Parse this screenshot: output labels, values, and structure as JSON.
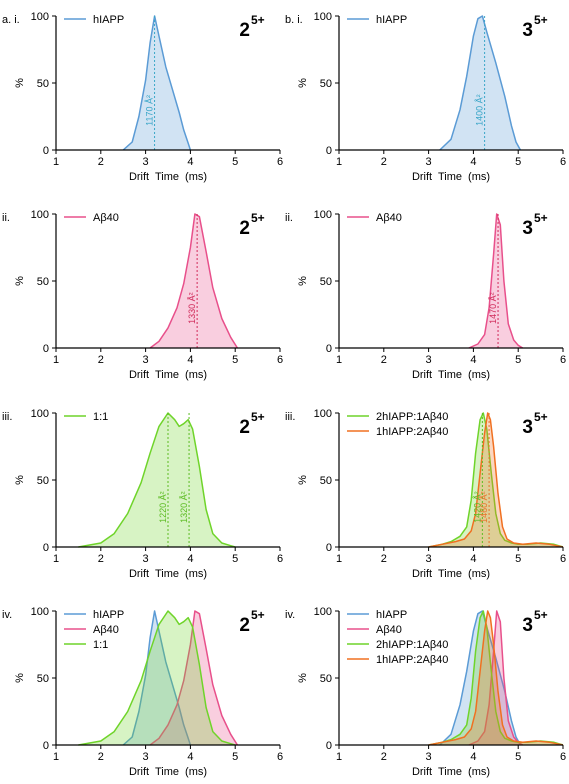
{
  "colors": {
    "hIAPP": "#5b9bd5",
    "Ab40": "#e8508b",
    "one_to_one": "#6fd42a",
    "2hIAPP:1Ab40": "#6fd42a",
    "1hIAPP:2Ab40": "#f07021",
    "ccs_blue": "#3aa6c8",
    "ccs_red": "#d02a5a",
    "ccs_green": "#5cbb22",
    "ccs_orange": "#e8742a"
  },
  "chart_data": [
    {
      "id": "ai",
      "type": "area",
      "panel_label": "a. i.",
      "charge": {
        "base": "2",
        "sup": "5+"
      },
      "xlabel": "Drift Time (ms)",
      "ylabel": "%",
      "xlim": [
        1,
        6
      ],
      "ylim": [
        0,
        100
      ],
      "xticks": [
        "1",
        "2",
        "3",
        "4",
        "5",
        "6"
      ],
      "yticks": [
        "0",
        "50",
        "100"
      ],
      "legend_placement": "top-left",
      "series": [
        {
          "name": "hIAPP",
          "key": "hIAPP",
          "x": [
            2.5,
            2.7,
            2.85,
            3.0,
            3.1,
            3.2,
            3.3,
            3.45,
            3.6,
            3.75,
            3.85,
            3.95,
            4.0
          ],
          "y": [
            0,
            6,
            25,
            52,
            80,
            100,
            85,
            62,
            45,
            28,
            15,
            5,
            0
          ]
        }
      ],
      "annotations": [
        {
          "text": "1170 Å²",
          "x": 3.2,
          "color": "ccs_blue"
        }
      ]
    },
    {
      "id": "bi",
      "type": "area",
      "panel_label": "b. i.",
      "charge": {
        "base": "3",
        "sup": "5+"
      },
      "xlabel": "Drift Time (ms)",
      "ylabel": "%",
      "xlim": [
        1,
        6
      ],
      "ylim": [
        0,
        100
      ],
      "xticks": [
        "1",
        "2",
        "3",
        "4",
        "5",
        "6"
      ],
      "yticks": [
        "0",
        "50",
        "100"
      ],
      "legend_placement": "top-left",
      "series": [
        {
          "name": "hIAPP",
          "key": "hIAPP",
          "x": [
            3.25,
            3.5,
            3.7,
            3.85,
            4.0,
            4.1,
            4.2,
            4.3,
            4.5,
            4.7,
            4.85,
            4.95,
            5.05
          ],
          "y": [
            0,
            8,
            30,
            55,
            85,
            98,
            100,
            88,
            65,
            40,
            18,
            6,
            0
          ]
        }
      ],
      "annotations": [
        {
          "text": "1400 Å²",
          "x": 4.25,
          "color": "ccs_blue"
        }
      ]
    },
    {
      "id": "aii",
      "type": "area",
      "panel_label": "ii.",
      "charge": {
        "base": "2",
        "sup": "5+"
      },
      "xlabel": "Drift Time (ms)",
      "ylabel": "%",
      "xlim": [
        1,
        6
      ],
      "ylim": [
        0,
        100
      ],
      "xticks": [
        "1",
        "2",
        "3",
        "4",
        "5",
        "6"
      ],
      "yticks": [
        "0",
        "50",
        "100"
      ],
      "legend_placement": "top-left",
      "series": [
        {
          "name": "Aβ40",
          "key": "Ab40",
          "x": [
            3.1,
            3.3,
            3.5,
            3.7,
            3.85,
            4.0,
            4.1,
            4.2,
            4.35,
            4.5,
            4.7,
            4.9,
            5.05
          ],
          "y": [
            0,
            5,
            15,
            30,
            48,
            75,
            100,
            98,
            72,
            45,
            22,
            8,
            0
          ]
        }
      ],
      "annotations": [
        {
          "text": "1330 Å²",
          "x": 4.15,
          "color": "ccs_red"
        }
      ]
    },
    {
      "id": "bii",
      "type": "area",
      "panel_label": "ii.",
      "charge": {
        "base": "3",
        "sup": "5+"
      },
      "xlabel": "Drift Time (ms)",
      "ylabel": "%",
      "xlim": [
        1,
        6
      ],
      "ylim": [
        0,
        100
      ],
      "xticks": [
        "1",
        "2",
        "3",
        "4",
        "5",
        "6"
      ],
      "yticks": [
        "0",
        "50",
        "100"
      ],
      "legend_placement": "top-left",
      "series": [
        {
          "name": "Aβ40",
          "key": "Ab40",
          "x": [
            3.9,
            4.1,
            4.25,
            4.35,
            4.45,
            4.52,
            4.6,
            4.68,
            4.78,
            4.9,
            5.0,
            5.1
          ],
          "y": [
            0,
            3,
            10,
            30,
            70,
            100,
            92,
            50,
            18,
            6,
            2,
            0
          ]
        }
      ],
      "annotations": [
        {
          "text": "1470 Å²",
          "x": 4.55,
          "color": "ccs_red"
        }
      ]
    },
    {
      "id": "aiii",
      "type": "area",
      "panel_label": "iii.",
      "charge": {
        "base": "2",
        "sup": "5+"
      },
      "xlabel": "Drift Time (ms)",
      "ylabel": "%",
      "xlim": [
        1,
        6
      ],
      "ylim": [
        0,
        100
      ],
      "xticks": [
        "1",
        "2",
        "3",
        "4",
        "5",
        "6"
      ],
      "yticks": [
        "0",
        "50",
        "100"
      ],
      "legend_placement": "top-left",
      "series": [
        {
          "name": "1:1",
          "key": "one_to_one",
          "x": [
            1.5,
            2.0,
            2.3,
            2.6,
            2.9,
            3.1,
            3.3,
            3.5,
            3.65,
            3.75,
            3.85,
            3.95,
            4.05,
            4.2,
            4.35,
            4.5,
            4.7,
            4.9,
            5.0
          ],
          "y": [
            0,
            3,
            10,
            25,
            48,
            70,
            90,
            100,
            95,
            90,
            92,
            95,
            88,
            60,
            28,
            10,
            3,
            1,
            0
          ]
        }
      ],
      "annotations": [
        {
          "text": "1220 Å²",
          "x": 3.5,
          "color": "ccs_green"
        },
        {
          "text": "1320 Å²",
          "x": 3.97,
          "color": "ccs_green"
        }
      ]
    },
    {
      "id": "biii",
      "type": "area",
      "panel_label": "iii.",
      "charge": {
        "base": "3",
        "sup": "5+"
      },
      "xlabel": "Drift Time (ms)",
      "ylabel": "%",
      "xlim": [
        1,
        6
      ],
      "ylim": [
        0,
        100
      ],
      "xticks": [
        "1",
        "2",
        "3",
        "4",
        "5",
        "6"
      ],
      "yticks": [
        "0",
        "50",
        "100"
      ],
      "legend_placement": "top-left",
      "series": [
        {
          "name": "2hIAPP:1Aβ40",
          "key": "2hIAPP:1Ab40",
          "x": [
            3.0,
            3.3,
            3.5,
            3.7,
            3.85,
            3.95,
            4.05,
            4.15,
            4.22,
            4.3,
            4.4,
            4.5,
            4.6,
            4.7,
            4.85,
            5.0,
            5.2,
            5.5,
            5.8,
            6.0
          ],
          "y": [
            0,
            2,
            4,
            8,
            15,
            35,
            70,
            95,
            100,
            88,
            55,
            25,
            10,
            5,
            3,
            2,
            2,
            3,
            2,
            0
          ]
        },
        {
          "name": "1hIAPP:2Aβ40",
          "key": "1hIAPP:2Ab40",
          "x": [
            3.0,
            3.3,
            3.6,
            3.8,
            3.95,
            4.05,
            4.15,
            4.25,
            4.32,
            4.38,
            4.45,
            4.55,
            4.65,
            4.75,
            4.9,
            5.1,
            5.4,
            5.7,
            6.0
          ],
          "y": [
            0,
            2,
            4,
            6,
            12,
            25,
            55,
            85,
            100,
            95,
            75,
            40,
            15,
            6,
            3,
            2,
            3,
            2,
            0
          ]
        }
      ],
      "annotations": [
        {
          "text": "1420 Å²",
          "x": 4.2,
          "color": "ccs_green"
        },
        {
          "text": "1460 Å²",
          "x": 4.35,
          "color": "ccs_orange"
        }
      ]
    },
    {
      "id": "aiv",
      "type": "area",
      "panel_label": "iv.",
      "charge": {
        "base": "2",
        "sup": "5+"
      },
      "xlabel": "Drift Time (ms)",
      "ylabel": "%",
      "xlim": [
        1,
        6
      ],
      "ylim": [
        0,
        100
      ],
      "xticks": [
        "1",
        "2",
        "3",
        "4",
        "5",
        "6"
      ],
      "yticks": [
        "0",
        "50",
        "100"
      ],
      "legend_placement": "top-left",
      "series": [
        {
          "name": "hIAPP",
          "key": "hIAPP",
          "x": [
            2.5,
            2.7,
            2.85,
            3.0,
            3.1,
            3.2,
            3.3,
            3.45,
            3.6,
            3.75,
            3.85,
            3.95,
            4.0
          ],
          "y": [
            0,
            6,
            25,
            52,
            80,
            100,
            85,
            62,
            45,
            28,
            15,
            5,
            0
          ]
        },
        {
          "name": "Aβ40",
          "key": "Ab40",
          "x": [
            3.1,
            3.3,
            3.5,
            3.7,
            3.85,
            4.0,
            4.1,
            4.2,
            4.35,
            4.5,
            4.7,
            4.9,
            5.05
          ],
          "y": [
            0,
            5,
            15,
            30,
            48,
            75,
            100,
            98,
            72,
            45,
            22,
            8,
            0
          ]
        },
        {
          "name": "1:1",
          "key": "one_to_one",
          "x": [
            1.5,
            2.0,
            2.3,
            2.6,
            2.9,
            3.1,
            3.3,
            3.5,
            3.65,
            3.75,
            3.85,
            3.95,
            4.05,
            4.2,
            4.35,
            4.5,
            4.7,
            4.9,
            5.0
          ],
          "y": [
            0,
            3,
            10,
            25,
            48,
            70,
            90,
            100,
            95,
            90,
            92,
            95,
            88,
            60,
            28,
            10,
            3,
            1,
            0
          ]
        }
      ],
      "annotations": []
    },
    {
      "id": "biv",
      "type": "area",
      "panel_label": "iv.",
      "charge": {
        "base": "3",
        "sup": "5+"
      },
      "xlabel": "Drift Time (ms)",
      "ylabel": "%",
      "xlim": [
        1,
        6
      ],
      "ylim": [
        0,
        100
      ],
      "xticks": [
        "1",
        "2",
        "3",
        "4",
        "5",
        "6"
      ],
      "yticks": [
        "0",
        "50",
        "100"
      ],
      "legend_placement": "top-left",
      "series": [
        {
          "name": "hIAPP",
          "key": "hIAPP",
          "x": [
            3.25,
            3.5,
            3.7,
            3.85,
            4.0,
            4.1,
            4.2,
            4.3,
            4.5,
            4.7,
            4.85,
            4.95,
            5.05
          ],
          "y": [
            0,
            8,
            30,
            55,
            85,
            98,
            100,
            88,
            65,
            40,
            18,
            6,
            0
          ]
        },
        {
          "name": "Aβ40",
          "key": "Ab40",
          "x": [
            3.9,
            4.1,
            4.25,
            4.35,
            4.45,
            4.52,
            4.6,
            4.68,
            4.78,
            4.9,
            5.0,
            5.1
          ],
          "y": [
            0,
            3,
            10,
            30,
            70,
            100,
            92,
            50,
            18,
            6,
            2,
            0
          ]
        },
        {
          "name": "2hIAPP:1Aβ40",
          "key": "2hIAPP:1Ab40",
          "x": [
            3.0,
            3.3,
            3.5,
            3.7,
            3.85,
            3.95,
            4.05,
            4.15,
            4.22,
            4.3,
            4.4,
            4.5,
            4.6,
            4.7,
            4.85,
            5.0,
            5.2,
            5.5,
            5.8,
            6.0
          ],
          "y": [
            0,
            2,
            4,
            8,
            15,
            35,
            70,
            95,
            100,
            88,
            55,
            25,
            10,
            5,
            3,
            2,
            2,
            3,
            2,
            0
          ]
        },
        {
          "name": "1hIAPP:2Aβ40",
          "key": "1hIAPP:2Ab40",
          "x": [
            3.0,
            3.3,
            3.6,
            3.8,
            3.95,
            4.05,
            4.15,
            4.25,
            4.32,
            4.38,
            4.45,
            4.55,
            4.65,
            4.75,
            4.9,
            5.1,
            5.4,
            5.7,
            6.0
          ],
          "y": [
            0,
            2,
            4,
            6,
            12,
            25,
            55,
            85,
            100,
            95,
            75,
            40,
            15,
            6,
            3,
            2,
            3,
            2,
            0
          ]
        }
      ],
      "annotations": []
    }
  ]
}
